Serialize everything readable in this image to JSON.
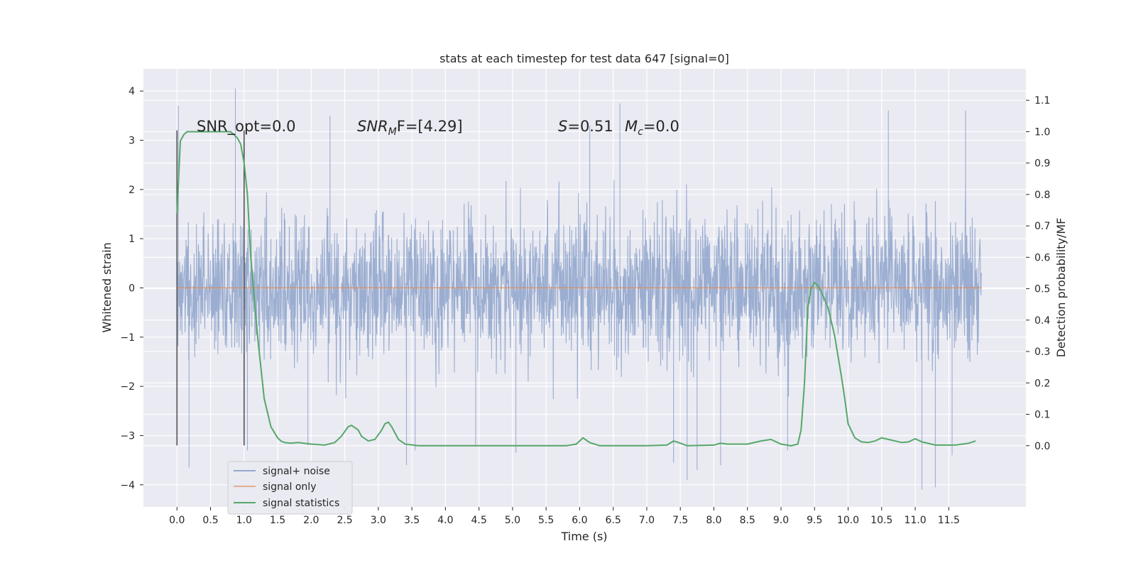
{
  "chart_data": {
    "type": "line",
    "title": "stats at each timestep for test data 647 [signal=0]",
    "xlabel": "Time (s)",
    "ylabel_left": "Whitened strain",
    "ylabel_right": "Detection probability/MF",
    "xlim": [
      -0.5,
      12.65
    ],
    "ylim_left": [
      -4.45,
      4.45
    ],
    "ylim_right": [
      -0.195,
      1.2
    ],
    "x_ticks": [
      0.0,
      0.5,
      1.0,
      1.5,
      2.0,
      2.5,
      3.0,
      3.5,
      4.0,
      4.5,
      5.0,
      5.5,
      6.0,
      6.5,
      7.0,
      7.5,
      8.0,
      8.5,
      9.0,
      9.5,
      10.0,
      10.5,
      11.0,
      11.5
    ],
    "x_tick_labels": [
      "0.0",
      "0.5",
      "1.0",
      "1.5",
      "2.0",
      "2.5",
      "3.0",
      "3.5",
      "4.0",
      "4.5",
      "5.0",
      "5.5",
      "6.0",
      "6.5",
      "7.0",
      "7.5",
      "8.0",
      "8.5",
      "9.0",
      "9.5",
      "10.0",
      "10.5",
      "11.0",
      "11.5"
    ],
    "y_ticks_left": [
      -4,
      -3,
      -2,
      -1,
      0,
      1,
      2,
      3,
      4
    ],
    "y_tick_labels_left": [
      "−4",
      "−3",
      "−2",
      "−1",
      "0",
      "1",
      "2",
      "3",
      "4"
    ],
    "y_ticks_right": [
      0.0,
      0.1,
      0.2,
      0.3,
      0.4,
      0.5,
      0.6,
      0.7,
      0.8,
      0.9,
      1.0,
      1.1
    ],
    "y_tick_labels_right": [
      "0.0",
      "0.1",
      "0.2",
      "0.3",
      "0.4",
      "0.5",
      "0.6",
      "0.7",
      "0.8",
      "0.9",
      "1.0",
      "1.1"
    ],
    "grid": true,
    "legend_placement": "lower-left",
    "annotations": {
      "snr_opt": "SNR_opt=0.0",
      "snr_mf_main": "SNR",
      "snr_mf_sub": "M",
      "snr_mf_rest": "F=[4.29]",
      "s_var": "S",
      "s_value": "=0.51",
      "mc_var": "M",
      "mc_sub": "c",
      "mc_value": "=0.0"
    },
    "series": [
      {
        "name": "signal+ noise",
        "axis": "left",
        "color": "#4c72b0",
        "note_range": [
          0.0,
          11.99
        ],
        "typical_abs": 1.8,
        "extremes": [
          [
            0.02,
            3.7
          ],
          [
            0.87,
            4.05
          ],
          [
            0.18,
            -3.65
          ],
          [
            1.05,
            -3.3
          ],
          [
            1.95,
            -3.2
          ],
          [
            2.28,
            3.5
          ],
          [
            3.42,
            -3.6
          ],
          [
            3.55,
            -3.3
          ],
          [
            4.45,
            -3.2
          ],
          [
            5.05,
            -3.35
          ],
          [
            6.15,
            3.3
          ],
          [
            6.6,
            3.75
          ],
          [
            7.4,
            -3.55
          ],
          [
            7.6,
            -3.9
          ],
          [
            7.75,
            -3.7
          ],
          [
            8.1,
            -3.6
          ],
          [
            9.1,
            -3.3
          ],
          [
            10.6,
            3.6
          ],
          [
            11.1,
            -4.1
          ],
          [
            11.3,
            -4.05
          ],
          [
            11.55,
            -3.4
          ],
          [
            11.75,
            3.6
          ]
        ]
      },
      {
        "name": "signal only",
        "axis": "left",
        "color": "#dd8452",
        "x": [
          0.0,
          11.99
        ],
        "y": [
          0.0,
          0.0
        ]
      },
      {
        "name": "signal statistics",
        "axis": "right",
        "color": "#55a868",
        "x": [
          0.0,
          0.05,
          0.1,
          0.15,
          0.2,
          0.3,
          0.5,
          0.7,
          0.8,
          0.85,
          0.9,
          0.95,
          1.0,
          1.05,
          1.1,
          1.2,
          1.3,
          1.4,
          1.5,
          1.55,
          1.6,
          1.7,
          1.8,
          2.0,
          2.2,
          2.35,
          2.45,
          2.55,
          2.6,
          2.7,
          2.75,
          2.85,
          2.95,
          3.05,
          3.1,
          3.15,
          3.2,
          3.3,
          3.4,
          3.6,
          4.0,
          5.0,
          5.8,
          5.95,
          6.05,
          6.15,
          6.3,
          6.5,
          7.0,
          7.3,
          7.4,
          7.5,
          7.6,
          8.0,
          8.1,
          8.2,
          8.5,
          8.7,
          8.85,
          9.0,
          9.15,
          9.25,
          9.3,
          9.35,
          9.4,
          9.45,
          9.5,
          9.55,
          9.6,
          9.7,
          9.8,
          9.9,
          9.95,
          10.0,
          10.1,
          10.2,
          10.3,
          10.4,
          10.5,
          10.6,
          10.8,
          10.9,
          11.0,
          11.1,
          11.3,
          11.6,
          11.8,
          11.9
        ],
        "y": [
          0.74,
          0.97,
          0.99,
          1.0,
          1.0,
          1.0,
          1.0,
          1.0,
          1.0,
          0.99,
          0.98,
          0.96,
          0.9,
          0.8,
          0.6,
          0.35,
          0.15,
          0.06,
          0.025,
          0.015,
          0.01,
          0.008,
          0.01,
          0.005,
          0.002,
          0.01,
          0.03,
          0.06,
          0.065,
          0.05,
          0.03,
          0.015,
          0.02,
          0.05,
          0.07,
          0.075,
          0.06,
          0.02,
          0.005,
          0.0,
          0.0,
          0.0,
          0.0,
          0.005,
          0.025,
          0.01,
          0.0,
          0.0,
          0.0,
          0.002,
          0.015,
          0.008,
          0.0,
          0.002,
          0.008,
          0.005,
          0.005,
          0.015,
          0.02,
          0.005,
          0.0,
          0.005,
          0.05,
          0.2,
          0.44,
          0.5,
          0.52,
          0.51,
          0.49,
          0.44,
          0.35,
          0.22,
          0.15,
          0.07,
          0.025,
          0.012,
          0.01,
          0.015,
          0.025,
          0.02,
          0.01,
          0.012,
          0.022,
          0.012,
          0.002,
          0.002,
          0.008,
          0.015
        ]
      }
    ],
    "vertical_markers": [
      {
        "x": 0.0,
        "y_left": [
          -3.2,
          3.2
        ]
      },
      {
        "x": 1.0,
        "y_left": [
          -3.2,
          3.2
        ]
      }
    ],
    "styles": {
      "axes_background": "#eaeaf2",
      "grid_color": "#ffffff",
      "marker_color": "#555555"
    }
  }
}
